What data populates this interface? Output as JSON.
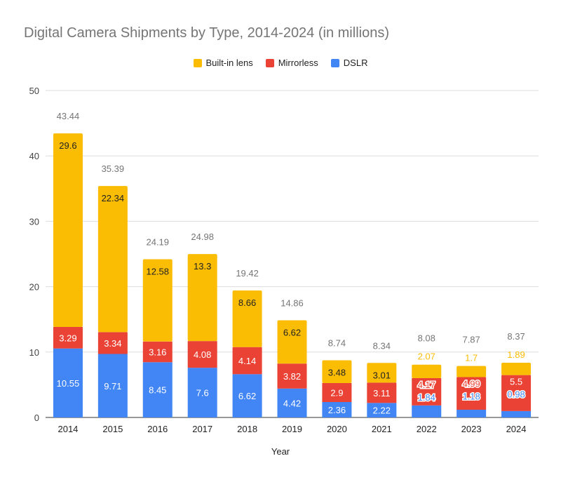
{
  "chart_data": {
    "type": "bar",
    "stacked": true,
    "title": "Digital Camera Shipments by Type, 2014-2024 (in millions)",
    "xlabel": "Year",
    "ylabel": "",
    "ylim": [
      0,
      50
    ],
    "yticks": [
      0,
      10,
      20,
      30,
      40,
      50
    ],
    "grid": true,
    "legend_position": "top",
    "categories": [
      "2014",
      "2015",
      "2016",
      "2017",
      "2018",
      "2019",
      "2020",
      "2021",
      "2022",
      "2023",
      "2024"
    ],
    "series": [
      {
        "name": "DSLR",
        "color": "#4285F4",
        "values": [
          10.55,
          9.71,
          8.45,
          7.6,
          6.62,
          4.42,
          2.36,
          2.22,
          1.84,
          1.18,
          0.98
        ]
      },
      {
        "name": "Mirrorless",
        "color": "#EA4335",
        "values": [
          3.29,
          3.34,
          3.16,
          4.08,
          4.14,
          3.82,
          2.9,
          3.11,
          4.17,
          4.99,
          5.5
        ]
      },
      {
        "name": "Built-in lens",
        "color": "#FBBC04",
        "values": [
          29.6,
          22.34,
          12.58,
          13.3,
          8.66,
          6.62,
          3.48,
          3.01,
          2.07,
          1.7,
          1.89
        ]
      }
    ],
    "totals": [
      43.44,
      35.39,
      24.19,
      24.98,
      19.42,
      14.86,
      8.74,
      8.34,
      8.08,
      7.87,
      8.37
    ]
  }
}
